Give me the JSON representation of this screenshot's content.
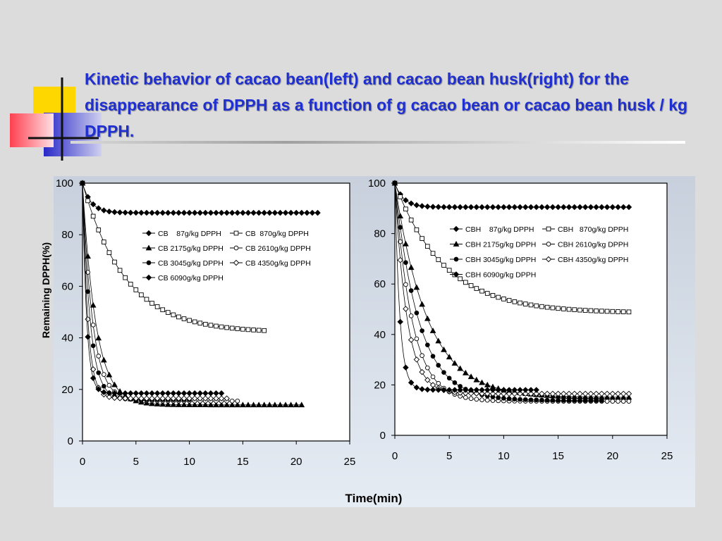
{
  "slide": {
    "title": "Kinetic behavior of cacao bean(left) and cacao bean husk(right) for the disappearance of DPPH as a function of g cacao bean or cacao bean husk / kg DPPH.",
    "title_color": "#1f2fd0",
    "xlabel": "Time(min)"
  },
  "chart_data": [
    {
      "type": "scatter",
      "title": "",
      "xlabel": "Time(min)",
      "ylabel": "Remaining DPPH(%)",
      "xlim": [
        0,
        25
      ],
      "ylim": [
        0,
        100
      ],
      "xticks": [
        0,
        5,
        10,
        15,
        20,
        25
      ],
      "yticks": [
        0,
        20,
        40,
        60,
        80,
        100
      ],
      "grid": false,
      "legend_position": "center-right",
      "series": [
        {
          "name": "CB    87g/kg DPPH",
          "marker": "diamond-filled",
          "t_end": 22,
          "plateau": 88.5,
          "tau": 0.8,
          "points": 45
        },
        {
          "name": "CB  870g/kg DPPH",
          "marker": "square-open",
          "t_end": 17,
          "plateau": 42,
          "tau": 4.0,
          "points": 35
        },
        {
          "name": "CB 2175g/kg DPPH",
          "marker": "triangle-filled",
          "t_end": 20.5,
          "plateau": 14,
          "tau": 1.25,
          "points": 42
        },
        {
          "name": "CB 2610g/kg DPPH",
          "marker": "circle-open",
          "t_end": 14.5,
          "plateau": 15.5,
          "tau": 0.95,
          "points": 30
        },
        {
          "name": "CB 3045g/kg DPPH",
          "marker": "circle-filled",
          "t_end": 10,
          "plateau": 16,
          "tau": 0.72,
          "points": 21
        },
        {
          "name": "CB 4350g/kg DPPH",
          "marker": "diamond-open",
          "t_end": 13.5,
          "plateau": 16.5,
          "tau": 0.5,
          "points": 28
        },
        {
          "name": "CB 6090g/kg DPPH",
          "marker": "diamond-filled",
          "t_end": 13,
          "plateau": 18.5,
          "tau": 0.38,
          "points": 27
        }
      ]
    },
    {
      "type": "scatter",
      "title": "",
      "xlabel": "Time(min)",
      "ylabel": "",
      "xlim": [
        0,
        25
      ],
      "ylim": [
        0,
        100
      ],
      "xticks": [
        0,
        5,
        10,
        15,
        20,
        25
      ],
      "yticks": [
        0,
        20,
        40,
        60,
        80,
        100
      ],
      "grid": false,
      "legend_position": "center-right",
      "series": [
        {
          "name": "CBH    87g/kg DPPH",
          "marker": "diamond-filled",
          "t_end": 21.5,
          "plateau": 90.5,
          "tau": 0.8,
          "points": 44
        },
        {
          "name": "CBH   870g/kg DPPH",
          "marker": "square-open",
          "t_end": 21.5,
          "plateau": 48.5,
          "tau": 4.5,
          "points": 44
        },
        {
          "name": "CBH 2175g/kg DPPH",
          "marker": "triangle-filled",
          "t_end": 21.5,
          "plateau": 15,
          "tau": 3.0,
          "points": 44
        },
        {
          "name": "CBH 2610g/kg DPPH",
          "marker": "circle-open",
          "t_end": 21.5,
          "plateau": 13.5,
          "tau": 1.6,
          "points": 44
        },
        {
          "name": "CBH 3045g/kg DPPH",
          "marker": "circle-filled",
          "t_end": 19,
          "plateau": 13.8,
          "tau": 2.2,
          "points": 39
        },
        {
          "name": "CBH 4350g/kg DPPH",
          "marker": "diamond-open",
          "t_end": 21.5,
          "plateau": 16.5,
          "tau": 1.1,
          "points": 44
        },
        {
          "name": "CBH 6090g/kg DPPH",
          "marker": "diamond-filled",
          "t_end": 13,
          "plateau": 18,
          "tau": 0.45,
          "points": 27
        }
      ]
    }
  ]
}
